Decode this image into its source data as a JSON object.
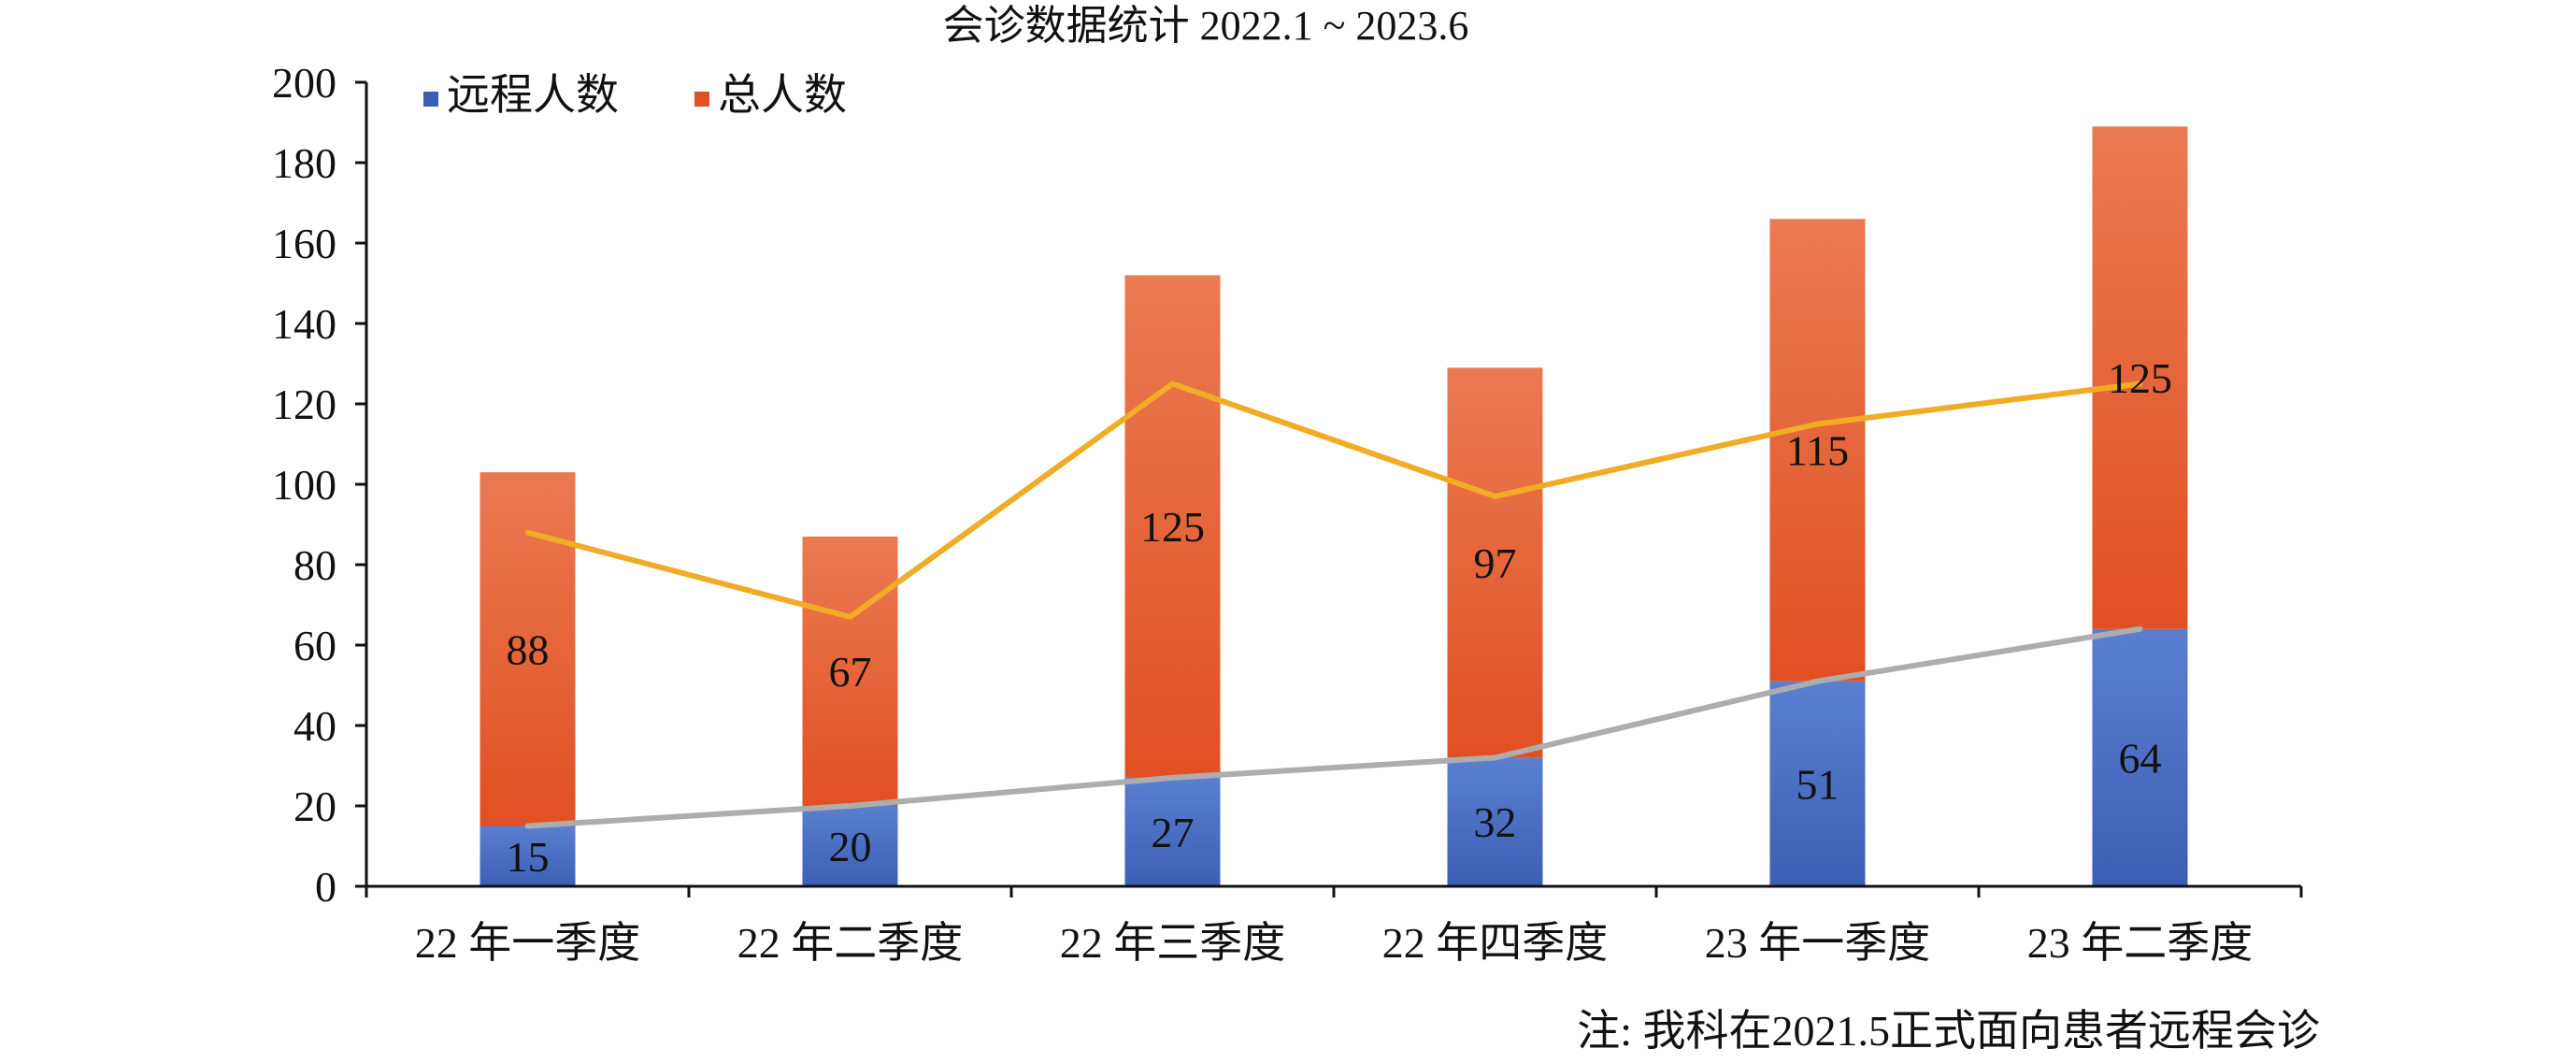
{
  "colors": {
    "remote_bar_top": "#5b7fd0",
    "remote_bar_bottom": "#3c5eb4",
    "total_bar_top": "#ea7a52",
    "total_bar_bottom": "#e15023",
    "total_line": "#f0ac24",
    "remote_line": "#adadad",
    "axis": "#111111"
  },
  "legend": {
    "remote_icon": "blue-square",
    "total_icon": "orange-square"
  },
  "chart_data": {
    "type": "bar",
    "title": "会诊数据统计 2022.1 ~ 2023.6",
    "note": "注: 我科在2021.5正式面向患者远程会诊",
    "categories": [
      "22 年一季度",
      "22 年二季度",
      "22 年三季度",
      "22 年四季度",
      "23 年一季度",
      "23 年二季度"
    ],
    "ylim": [
      0,
      200
    ],
    "yticks": [
      0,
      20,
      40,
      60,
      80,
      100,
      120,
      140,
      160,
      180,
      200
    ],
    "legend_position": "top-left",
    "series": [
      {
        "name": "远程人数",
        "values": [
          15,
          20,
          27,
          32,
          51,
          64
        ],
        "labels": [
          "15",
          "20",
          "27",
          "32",
          "51",
          "64"
        ]
      },
      {
        "name": "总人数",
        "values": [
          88,
          67,
          125,
          97,
          115,
          125
        ],
        "labels": [
          "88",
          "67",
          "125",
          "97",
          "115",
          "125"
        ]
      }
    ],
    "stacked": true,
    "lines": [
      {
        "series": "总人数",
        "values": [
          88,
          67,
          125,
          97,
          115,
          125
        ]
      },
      {
        "series": "远程人数",
        "values": [
          15,
          20,
          27,
          32,
          51,
          64
        ]
      }
    ]
  }
}
